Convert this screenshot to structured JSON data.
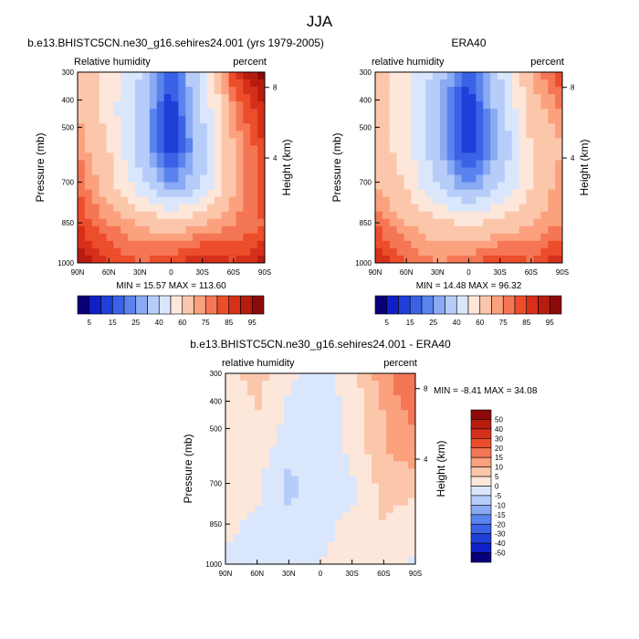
{
  "title": "JJA",
  "chart_data": [
    {
      "type": "heatmap",
      "title": "b.e13.BHISTC5CN.ne30_g16.sehires24.001 (yrs 1979-2005)",
      "left_label": "Relative humidity",
      "right_label": "percent",
      "xlabel": "",
      "ylabel": "Pressure (mb)",
      "ylabel_right": "Height (km)",
      "xticks": [
        "90N",
        "60N",
        "30N",
        "0",
        "30S",
        "60S",
        "90S"
      ],
      "yticks": [
        "300",
        "400",
        "500",
        "700",
        "850",
        "1000"
      ],
      "yticks_right": [
        "8",
        "4"
      ],
      "stats": "MIN = 15.57  MAX = 113.60",
      "min": 15.57,
      "max": 113.6,
      "latitudes": [
        90,
        60,
        30,
        0,
        -30,
        -60,
        -90
      ],
      "pressures": [
        300,
        400,
        500,
        700,
        850,
        1000
      ],
      "values": [
        [
          70,
          55,
          40,
          15,
          45,
          85,
          99
        ],
        [
          70,
          55,
          35,
          10,
          40,
          75,
          90
        ],
        [
          75,
          60,
          35,
          10,
          35,
          70,
          85
        ],
        [
          80,
          65,
          45,
          25,
          40,
          70,
          85
        ],
        [
          85,
          75,
          70,
          65,
          70,
          75,
          80
        ],
        [
          95,
          85,
          80,
          85,
          90,
          85,
          92
        ]
      ]
    },
    {
      "type": "heatmap",
      "title": "ERA40",
      "left_label": "relative humidity",
      "right_label": "percent",
      "xlabel": "",
      "ylabel": "Pressure (mb)",
      "ylabel_right": "Height (km)",
      "xticks": [
        "90N",
        "60N",
        "30N",
        "0",
        "30S",
        "60S",
        "90S"
      ],
      "yticks": [
        "300",
        "400",
        "500",
        "700",
        "850",
        "1000"
      ],
      "yticks_right": [
        "8",
        "4"
      ],
      "stats": "MIN = 14.48  MAX = 96.32",
      "min": 14.48,
      "max": 96.32,
      "latitudes": [
        90,
        60,
        30,
        0,
        -30,
        -60,
        -90
      ],
      "pressures": [
        300,
        400,
        500,
        700,
        850,
        1000
      ],
      "values": [
        [
          65,
          55,
          35,
          15,
          40,
          70,
          85
        ],
        [
          65,
          55,
          30,
          10,
          35,
          65,
          75
        ],
        [
          65,
          55,
          30,
          10,
          30,
          60,
          70
        ],
        [
          70,
          60,
          40,
          25,
          40,
          60,
          75
        ],
        [
          80,
          70,
          65,
          60,
          65,
          70,
          75
        ],
        [
          90,
          80,
          75,
          80,
          85,
          80,
          90
        ]
      ]
    },
    {
      "type": "heatmap",
      "title": "b.e13.BHISTC5CN.ne30_g16.sehires24.001 - ERA40",
      "left_label": "relative humidity",
      "right_label": "percent",
      "xlabel": "",
      "ylabel": "Pressure (mb)",
      "ylabel_right": "Height (km)",
      "xticks": [
        "90N",
        "60N",
        "30N",
        "0",
        "30S",
        "60S",
        "90S"
      ],
      "yticks": [
        "300",
        "400",
        "500",
        "700",
        "850",
        "1000"
      ],
      "yticks_right": [
        "8",
        "4"
      ],
      "stats": "MIN = -8.41  MAX = 34.08",
      "min": -8.41,
      "max": 34.08,
      "latitudes": [
        90,
        60,
        30,
        0,
        -30,
        -60,
        -90
      ],
      "pressures": [
        300,
        400,
        500,
        700,
        850,
        1000
      ],
      "values": [
        [
          8,
          12,
          6,
          3,
          8,
          18,
          28
        ],
        [
          6,
          10,
          4,
          2,
          6,
          15,
          22
        ],
        [
          8,
          8,
          2,
          1,
          6,
          15,
          18
        ],
        [
          8,
          6,
          -2,
          3,
          4,
          12,
          12
        ],
        [
          6,
          4,
          2,
          4,
          6,
          10,
          6
        ],
        [
          4,
          3,
          4,
          5,
          6,
          8,
          4
        ]
      ]
    }
  ],
  "colorbars": {
    "absolute": {
      "labels": [
        "5",
        "15",
        "25",
        "40",
        "60",
        "75",
        "85",
        "95"
      ],
      "levels": [
        0,
        5,
        10,
        15,
        20,
        25,
        30,
        40,
        50,
        60,
        70,
        75,
        80,
        85,
        90,
        95
      ],
      "colors": [
        "#08007a",
        "#1020c8",
        "#1e3fd8",
        "#3a62e6",
        "#5b83ee",
        "#8aaaf4",
        "#b7cdf9",
        "#dae6fb",
        "#fde7da",
        "#fcc6ab",
        "#fba17d",
        "#f57655",
        "#ec4d2b",
        "#d6301b",
        "#b81c0f",
        "#8c0a07"
      ]
    },
    "difference": {
      "labels": [
        "50",
        "40",
        "30",
        "20",
        "15",
        "10",
        "5",
        "0",
        "-5",
        "-10",
        "-15",
        "-20",
        "-30",
        "-40",
        "-50"
      ],
      "levels": [
        -50,
        -40,
        -30,
        -20,
        -15,
        -10,
        -5,
        0,
        5,
        10,
        15,
        20,
        30,
        40,
        50
      ],
      "colors": [
        "#08007a",
        "#1020c8",
        "#1e3fd8",
        "#3a62e6",
        "#5b83ee",
        "#8aaaf4",
        "#b7cdf9",
        "#dae6fb",
        "#fde7da",
        "#fcc6ab",
        "#fba17d",
        "#f57655",
        "#ec4d2b",
        "#d6301b",
        "#b81c0f",
        "#8c0a07"
      ]
    }
  }
}
